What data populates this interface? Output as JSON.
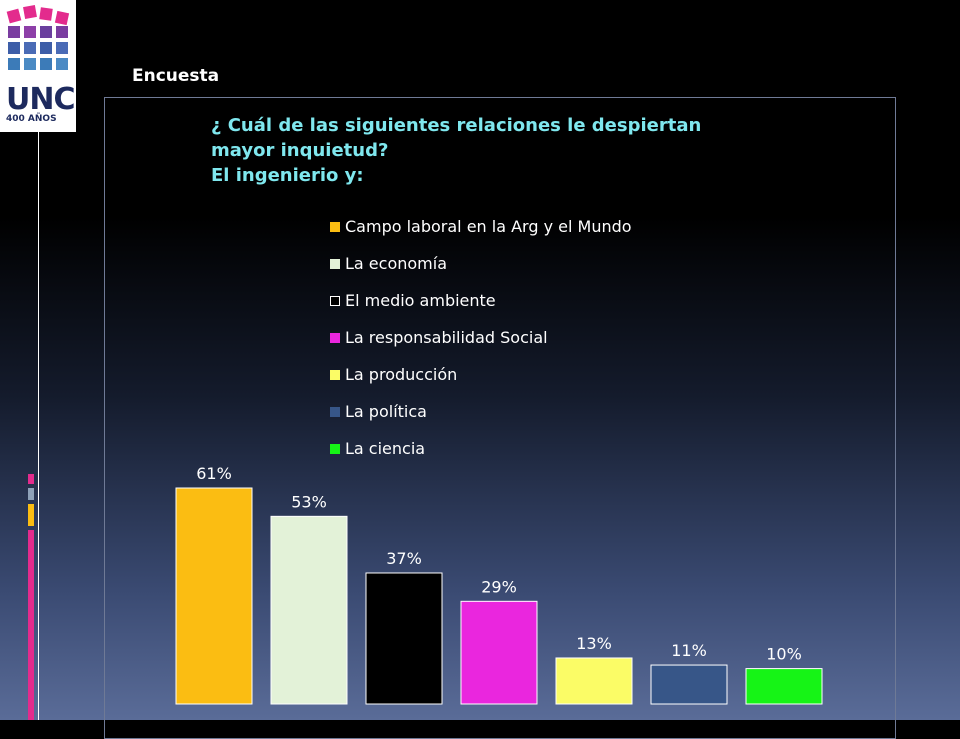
{
  "logo": {
    "text": "UNC",
    "subtext": "400 AÑOS"
  },
  "section_title": "Encuesta",
  "question": {
    "lines": [
      "¿ Cuál de las siguientes relaciones le despiertan",
      "mayor inquietud?",
      "El ingenierio y:"
    ]
  },
  "colors": {
    "background": "#000000",
    "title_text": "#7fe7ee",
    "label_text": "#ffffff"
  },
  "chart_data": {
    "type": "bar",
    "title": "",
    "xlabel": "",
    "ylabel": "",
    "ylim": [
      0,
      100
    ],
    "legend_position": "top-center",
    "grid": false,
    "categories": [
      "Campo laboral en la Arg y el Mundo",
      "La economía",
      "El medio ambiente",
      "La responsabilidad Social",
      "La producción",
      "La política",
      "La ciencia"
    ],
    "values": [
      61,
      53,
      37,
      29,
      13,
      11,
      10
    ],
    "value_labels": [
      "61%",
      "53%",
      "37%",
      "29%",
      "13%",
      "11%",
      "10%"
    ],
    "bar_colors": [
      "#fbbd12",
      "#e3f2d8",
      "#000000",
      "#ea26de",
      "#fbfc66",
      "#375688",
      "#16f416"
    ]
  }
}
